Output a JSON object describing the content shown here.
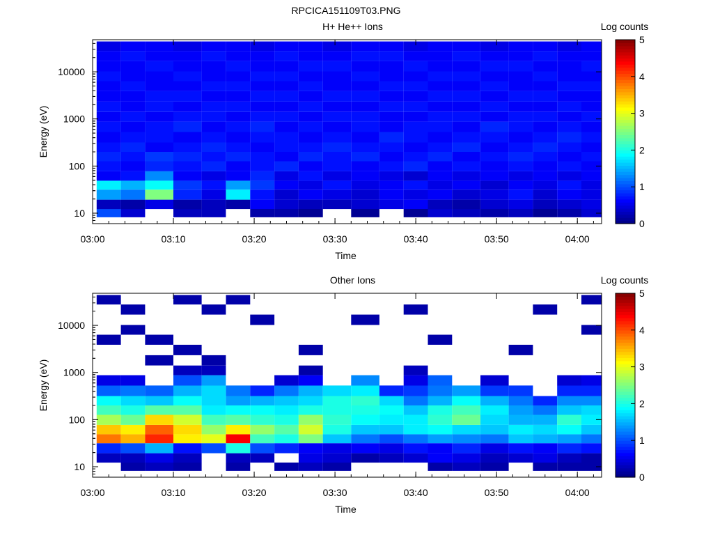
{
  "figure": {
    "title": "RPCICA151109T03.PNG"
  },
  "chart_data": [
    {
      "type": "heatmap",
      "title": "H+ He++ Ions",
      "xlabel": "Time",
      "ylabel": "Energy (eV)",
      "yscale": "log",
      "ylim": [
        6,
        48000
      ],
      "xlim": [
        "03:00",
        "04:03"
      ],
      "x_ticks": [
        "03:00",
        "03:10",
        "03:20",
        "03:30",
        "03:40",
        "03:50",
        "04:00"
      ],
      "y_ticks": [
        "10",
        "100",
        "1000",
        "10000"
      ],
      "colorbar": {
        "label": "Log counts",
        "range": [
          0,
          5
        ],
        "ticks": [
          "0",
          "1",
          "2",
          "3",
          "4",
          "5"
        ],
        "colormap": "jet"
      },
      "time_bins": [
        "03:02",
        "03:05",
        "03:08",
        "03:12",
        "03:15",
        "03:18",
        "03:21",
        "03:24",
        "03:27",
        "03:30",
        "03:34",
        "03:37",
        "03:40",
        "03:43",
        "03:46",
        "03:50",
        "03:53",
        "03:56",
        "03:59",
        "04:02"
      ],
      "energy_bands_eV": [
        10,
        15,
        25,
        40,
        60,
        100,
        160,
        250,
        400,
        700,
        1100,
        1800,
        3000,
        5000,
        8000,
        13000,
        22000,
        35000
      ],
      "cells": [
        [
          1.0,
          0.4,
          0,
          0.3,
          0.3,
          0,
          0.2,
          0.2,
          0.1,
          0,
          0.1,
          0,
          0.1,
          0.4,
          0.3,
          0.2,
          0.3,
          0.1,
          0.2,
          0.4
        ],
        [
          0.3,
          0.2,
          0.5,
          0.2,
          0.3,
          0.2,
          0.6,
          0.4,
          0.3,
          0.3,
          0.4,
          0.5,
          0.6,
          0.3,
          0.2,
          0.4,
          0.5,
          0.3,
          0.4,
          0.5
        ],
        [
          1.4,
          1.2,
          2.5,
          0.8,
          0.5,
          1.8,
          0.7,
          0.4,
          0.6,
          0.5,
          0.4,
          0.6,
          0.5,
          0.6,
          0.4,
          0.5,
          0.7,
          0.4,
          0.6,
          0.5
        ],
        [
          1.8,
          1.5,
          1.9,
          0.9,
          0.7,
          1.4,
          0.9,
          0.6,
          0.5,
          0.7,
          0.5,
          0.6,
          0.7,
          0.5,
          0.6,
          0.4,
          0.6,
          0.5,
          0.7,
          0.5
        ],
        [
          0.6,
          0.7,
          1.3,
          0.6,
          0.5,
          0.6,
          0.8,
          0.5,
          0.7,
          0.5,
          0.6,
          0.5,
          0.4,
          0.6,
          0.5,
          0.6,
          0.5,
          0.6,
          0.5,
          0.6
        ],
        [
          0.7,
          0.6,
          0.8,
          0.7,
          0.8,
          0.6,
          0.7,
          0.8,
          0.6,
          0.7,
          0.6,
          0.7,
          0.8,
          0.6,
          0.7,
          0.6,
          0.7,
          0.6,
          0.7,
          0.6
        ],
        [
          0.8,
          0.7,
          0.9,
          0.8,
          0.7,
          0.8,
          0.7,
          0.6,
          0.8,
          0.7,
          0.8,
          0.6,
          0.7,
          0.8,
          0.6,
          0.7,
          0.8,
          0.7,
          0.6,
          0.7
        ],
        [
          0.7,
          0.8,
          0.6,
          0.7,
          0.8,
          0.7,
          0.6,
          0.7,
          0.7,
          0.8,
          0.7,
          0.7,
          0.6,
          0.7,
          0.8,
          0.6,
          0.7,
          0.8,
          0.7,
          0.6
        ],
        [
          0.6,
          0.7,
          0.7,
          0.6,
          0.7,
          0.6,
          0.7,
          0.7,
          0.6,
          0.7,
          0.6,
          0.8,
          0.7,
          0.6,
          0.7,
          0.7,
          0.6,
          0.7,
          0.8,
          0.7
        ],
        [
          0.7,
          0.6,
          0.7,
          0.8,
          0.6,
          0.7,
          0.8,
          0.6,
          0.7,
          0.6,
          0.7,
          0.6,
          0.7,
          0.7,
          0.6,
          0.8,
          0.7,
          0.6,
          0.7,
          0.6
        ],
        [
          0.6,
          0.7,
          0.6,
          0.7,
          0.7,
          0.6,
          0.7,
          0.7,
          0.6,
          0.7,
          0.7,
          0.6,
          0.6,
          0.7,
          0.7,
          0.6,
          0.7,
          0.7,
          0.6,
          0.7
        ],
        [
          0.7,
          0.6,
          0.7,
          0.6,
          0.7,
          0.7,
          0.6,
          0.6,
          0.7,
          0.6,
          0.6,
          0.7,
          0.7,
          0.6,
          0.6,
          0.7,
          0.6,
          0.6,
          0.7,
          0.6
        ],
        [
          0.6,
          0.6,
          0.7,
          0.7,
          0.6,
          0.6,
          0.7,
          0.7,
          0.6,
          0.7,
          0.7,
          0.6,
          0.6,
          0.7,
          0.7,
          0.6,
          0.7,
          0.7,
          0.6,
          0.6
        ],
        [
          0.6,
          0.7,
          0.6,
          0.6,
          0.7,
          0.7,
          0.6,
          0.6,
          0.7,
          0.6,
          0.6,
          0.7,
          0.7,
          0.6,
          0.6,
          0.7,
          0.6,
          0.6,
          0.7,
          0.7
        ],
        [
          0.7,
          0.6,
          0.6,
          0.7,
          0.6,
          0.6,
          0.7,
          0.7,
          0.6,
          0.6,
          0.7,
          0.6,
          0.6,
          0.7,
          0.7,
          0.6,
          0.6,
          0.7,
          0.6,
          0.6
        ],
        [
          0.6,
          0.6,
          0.7,
          0.6,
          0.6,
          0.7,
          0.6,
          0.6,
          0.7,
          0.7,
          0.6,
          0.6,
          0.7,
          0.6,
          0.6,
          0.7,
          0.7,
          0.6,
          0.6,
          0.7
        ],
        [
          0.6,
          0.7,
          0.6,
          0.6,
          0.7,
          0.6,
          0.6,
          0.7,
          0.6,
          0.6,
          0.7,
          0.7,
          0.6,
          0.6,
          0.7,
          0.6,
          0.6,
          0.7,
          0.6,
          0.6
        ],
        [
          0.5,
          0.6,
          0.6,
          0.5,
          0.6,
          0.6,
          0.5,
          0.6,
          0.6,
          0.5,
          0.6,
          0.6,
          0.5,
          0.6,
          0.6,
          0.5,
          0.6,
          0.6,
          0.5,
          0.6
        ]
      ]
    },
    {
      "type": "heatmap",
      "title": "Other Ions",
      "xlabel": "Time",
      "ylabel": "Energy (eV)",
      "yscale": "log",
      "ylim": [
        6,
        48000
      ],
      "xlim": [
        "03:00",
        "04:03"
      ],
      "x_ticks": [
        "03:00",
        "03:10",
        "03:20",
        "03:30",
        "03:40",
        "03:50",
        "04:00"
      ],
      "y_ticks": [
        "10",
        "100",
        "1000",
        "10000"
      ],
      "colorbar": {
        "label": "Log counts",
        "range": [
          0,
          5
        ],
        "ticks": [
          "0",
          "1",
          "2",
          "3",
          "4",
          "5"
        ],
        "colormap": "jet"
      },
      "time_bins": [
        "03:02",
        "03:05",
        "03:08",
        "03:12",
        "03:15",
        "03:18",
        "03:21",
        "03:24",
        "03:27",
        "03:30",
        "03:34",
        "03:37",
        "03:40",
        "03:43",
        "03:46",
        "03:50",
        "03:53",
        "03:56",
        "03:59",
        "04:02"
      ],
      "energy_bands_eV": [
        10,
        15,
        25,
        40,
        60,
        100,
        160,
        250,
        400,
        700,
        1100,
        1800,
        3000,
        5000,
        8000,
        13000,
        22000,
        35000
      ],
      "cells": [
        [
          0,
          0.2,
          0.3,
          0.2,
          0,
          0.2,
          0,
          0.2,
          0.3,
          0.2,
          0,
          0,
          0,
          0.2,
          0.3,
          0.2,
          0,
          0.2,
          0.2,
          0.2
        ],
        [
          0.3,
          0.3,
          0.5,
          0.3,
          0,
          0.3,
          0.3,
          0,
          0.5,
          0.4,
          0.2,
          0.3,
          0.4,
          0.6,
          0.5,
          0.3,
          0.4,
          0.5,
          0.3,
          0.2
        ],
        [
          0.8,
          1.0,
          1.5,
          0.7,
          1.0,
          2.0,
          1.0,
          0.8,
          0.6,
          0.5,
          0.6,
          0.5,
          0.7,
          0.6,
          0.8,
          0.5,
          0.7,
          0.6,
          0.8,
          0.7
        ],
        [
          3.8,
          3.5,
          4.2,
          3.2,
          3.0,
          4.4,
          2.2,
          2.0,
          2.5,
          1.6,
          1.2,
          1.0,
          1.2,
          1.4,
          1.3,
          1.2,
          1.6,
          1.5,
          1.4,
          1.2
        ],
        [
          3.4,
          3.2,
          3.9,
          3.3,
          2.6,
          3.2,
          2.6,
          2.3,
          2.9,
          2.0,
          1.6,
          1.6,
          1.8,
          1.9,
          1.7,
          1.6,
          1.8,
          1.7,
          1.9,
          1.6
        ],
        [
          2.7,
          2.4,
          3.3,
          2.9,
          2.2,
          2.3,
          2.1,
          2.0,
          2.6,
          2.1,
          1.9,
          1.8,
          1.8,
          2.1,
          2.4,
          1.7,
          1.5,
          1.5,
          2.1,
          1.8
        ],
        [
          2.2,
          2.0,
          2.3,
          2.3,
          1.8,
          1.9,
          1.9,
          1.8,
          2.0,
          2.0,
          2.0,
          1.9,
          1.6,
          2.0,
          2.2,
          1.8,
          1.4,
          1.2,
          1.6,
          1.7
        ],
        [
          1.9,
          1.7,
          1.6,
          1.9,
          1.7,
          1.4,
          1.5,
          1.6,
          1.7,
          2.0,
          2.1,
          1.7,
          1.2,
          1.5,
          1.9,
          1.5,
          1.2,
          0.8,
          1.3,
          1.3
        ],
        [
          1.1,
          1.2,
          1.1,
          1.5,
          1.7,
          1.2,
          0.8,
          1.2,
          1.5,
          1.7,
          1.8,
          0.8,
          0.9,
          1.2,
          1.4,
          0.9,
          0.9,
          0,
          0.8,
          0.8
        ],
        [
          0.5,
          0.5,
          0,
          1.0,
          1.4,
          0,
          0,
          0.4,
          0.6,
          0,
          1.3,
          0,
          0.5,
          1.1,
          0,
          0.4,
          0,
          0,
          0.4,
          0.5
        ],
        [
          0,
          0,
          0,
          0.3,
          0.3,
          0,
          0,
          0,
          0.2,
          0,
          0,
          0,
          0.3,
          0,
          0,
          0,
          0,
          0,
          0,
          0
        ],
        [
          0,
          0,
          0.2,
          0,
          0.2,
          0,
          0,
          0,
          0,
          0,
          0,
          0,
          0,
          0,
          0,
          0,
          0,
          0,
          0,
          0
        ],
        [
          0,
          0,
          0,
          0.2,
          0,
          0,
          0,
          0,
          0.2,
          0,
          0,
          0,
          0,
          0,
          0,
          0,
          0.2,
          0,
          0,
          0
        ],
        [
          0.2,
          0,
          0.2,
          0,
          0,
          0,
          0,
          0,
          0,
          0,
          0,
          0,
          0,
          0.2,
          0,
          0,
          0,
          0,
          0,
          0
        ],
        [
          0,
          0.2,
          0,
          0,
          0,
          0,
          0,
          0,
          0,
          0,
          0,
          0,
          0,
          0,
          0,
          0,
          0,
          0,
          0,
          0.2
        ],
        [
          0,
          0,
          0,
          0,
          0,
          0,
          0.2,
          0,
          0,
          0,
          0.2,
          0,
          0,
          0,
          0,
          0,
          0,
          0,
          0,
          0
        ],
        [
          0,
          0.2,
          0,
          0,
          0.2,
          0,
          0,
          0,
          0,
          0,
          0,
          0,
          0.2,
          0,
          0,
          0,
          0,
          0.2,
          0,
          0
        ],
        [
          0.2,
          0,
          0,
          0.2,
          0,
          0.2,
          0,
          0,
          0,
          0,
          0,
          0,
          0,
          0,
          0,
          0,
          0,
          0,
          0,
          0.2
        ]
      ]
    }
  ]
}
